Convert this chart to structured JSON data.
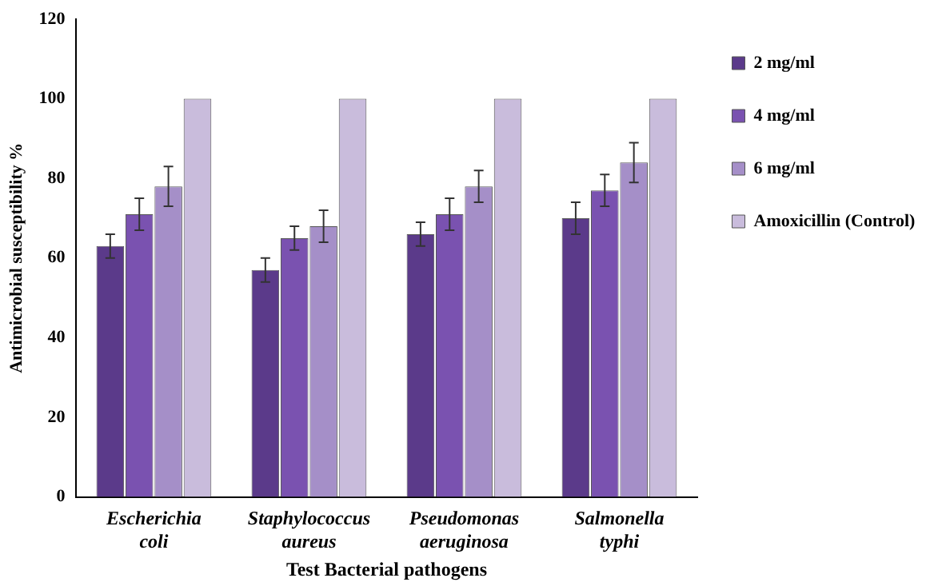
{
  "chart_data": {
    "type": "bar",
    "xlabel": "Test Bacterial pathogens",
    "ylabel": "Antimicrobial susceptibility %",
    "categories": [
      "Escherichia coli",
      "Staphylococcus aureus",
      "Pseudomonas aeruginosa",
      "Salmonella typhi"
    ],
    "series": [
      {
        "name": "2 mg/ml",
        "color": "#5b3a8a",
        "values": [
          63,
          57,
          66,
          70
        ],
        "errors": [
          3,
          3,
          3,
          4
        ]
      },
      {
        "name": "4 mg/ml",
        "color": "#7a52b0",
        "values": [
          71,
          65,
          71,
          77
        ],
        "errors": [
          4,
          3,
          4,
          4
        ]
      },
      {
        "name": "6 mg/ml",
        "color": "#a58fc8",
        "values": [
          78,
          68,
          78,
          84
        ],
        "errors": [
          5,
          4,
          4,
          5
        ]
      },
      {
        "name": "Amoxicillin (Control)",
        "color": "#c9bcdc",
        "values": [
          100,
          100,
          100,
          100
        ]
      }
    ],
    "ylim": [
      0,
      120
    ],
    "yticks": [
      0,
      20,
      40,
      60,
      80,
      100,
      120
    ],
    "grid": false,
    "legend": "top right"
  }
}
